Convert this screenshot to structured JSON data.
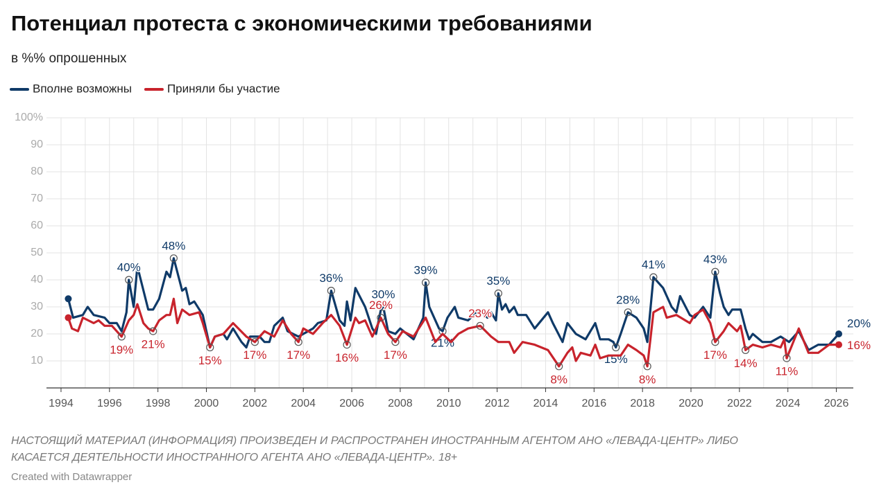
{
  "chart_data": {
    "type": "line",
    "title": "Потенциал протеста с экономическими требованиями",
    "subtitle": "в %% опрошенных",
    "footnote": [
      "НАСТОЯЩИЙ МАТЕРИАЛ (ИНФОРМАЦИЯ) ПРОИЗВЕДЕН И РАСПРОСТРАНЕН ИНОСТРАННЫМ АГЕНТОМ АНО «ЛЕВАДА-ЦЕНТР» ЛИБО",
      "КАСАЕТСЯ ДЕЯТЕЛЬНОСТИ ИНОСТРАННОГО АГЕНТА АНО «ЛЕВАДА-ЦЕНТР». 18+"
    ],
    "credit": "Created with Datawrapper",
    "xlim": [
      1993.4,
      2026.7
    ],
    "xticks": [
      1994,
      1996,
      1998,
      2000,
      2002,
      2004,
      2006,
      2008,
      2010,
      2012,
      2014,
      2016,
      2018,
      2020,
      2022,
      2024,
      2026
    ],
    "ylim": [
      0,
      100
    ],
    "yticks": [
      10,
      20,
      30,
      40,
      50,
      60,
      70,
      80,
      90,
      {
        "value": 100,
        "label": "100%"
      }
    ],
    "grid": true,
    "series": [
      {
        "name": "Вполне возможны",
        "color": "#0f3a68",
        "x": [
          1994.3,
          1994.5,
          1994.9,
          1995.1,
          1995.35,
          1995.8,
          1996.0,
          1996.3,
          1996.5,
          1996.7,
          1996.8,
          1997.0,
          1997.15,
          1997.6,
          1997.8,
          1998.05,
          1998.35,
          1998.5,
          1998.65,
          1999.0,
          1999.15,
          1999.3,
          1999.5,
          1999.85,
          2000.0,
          2000.15,
          2000.35,
          2000.7,
          2000.85,
          2001.1,
          2001.45,
          2001.65,
          2001.8,
          2002.2,
          2002.4,
          2002.6,
          2002.8,
          2003.15,
          2003.35,
          2003.8,
          2004.4,
          2004.6,
          2004.95,
          2005.15,
          2005.5,
          2005.7,
          2005.8,
          2005.95,
          2006.15,
          2006.55,
          2006.85,
          2007.0,
          2007.2,
          2007.3,
          2007.5,
          2007.8,
          2008.0,
          2008.55,
          2008.95,
          2009.05,
          2009.2,
          2009.6,
          2009.75,
          2009.95,
          2010.25,
          2010.4,
          2010.8,
          2011.15,
          2011.35,
          2011.6,
          2011.75,
          2011.95,
          2012.05,
          2012.2,
          2012.35,
          2012.5,
          2012.7,
          2012.85,
          2013.2,
          2013.55,
          2014.1,
          2014.3,
          2014.7,
          2014.9,
          2015.25,
          2015.65,
          2016.05,
          2016.25,
          2016.6,
          2016.8,
          2016.9,
          2017.1,
          2017.4,
          2017.75,
          2018.05,
          2018.2,
          2018.45,
          2018.85,
          2019.2,
          2019.4,
          2019.55,
          2019.95,
          2020.15,
          2020.5,
          2020.8,
          2021.0,
          2021.2,
          2021.35,
          2021.55,
          2021.7,
          2022.05,
          2022.25,
          2022.4,
          2022.55,
          2022.95,
          2023.3,
          2023.7,
          2024.05,
          2024.45,
          2024.85,
          2025.25,
          2025.7,
          2026.1
        ],
        "values": [
          33,
          26,
          27,
          30,
          27,
          26,
          24,
          24,
          21,
          28,
          40,
          30,
          45,
          29,
          29,
          33,
          43,
          41,
          48,
          36,
          37,
          31,
          32,
          27,
          21,
          15,
          19,
          20,
          18,
          22,
          17,
          15,
          19,
          19,
          17,
          17,
          23,
          26,
          21,
          19,
          22,
          24,
          25,
          36,
          25,
          23,
          32,
          25,
          37,
          30,
          22,
          20,
          29,
          30,
          21,
          20,
          22,
          18,
          26,
          39,
          30,
          22,
          21,
          26,
          30,
          26,
          25,
          28,
          28,
          26,
          28,
          25,
          35,
          29,
          31,
          28,
          30,
          27,
          27,
          22,
          28,
          24,
          17,
          24,
          20,
          18,
          24,
          18,
          18,
          17,
          15,
          20,
          28,
          26,
          22,
          17,
          41,
          37,
          30,
          28,
          34,
          27,
          26,
          30,
          26,
          43,
          35,
          30,
          27,
          29,
          29,
          22,
          18,
          20,
          17,
          17,
          19,
          17,
          21,
          14,
          16,
          16,
          20
        ],
        "value_labels": [
          null,
          null,
          null,
          null,
          null,
          null,
          null,
          null,
          null,
          null,
          "40%",
          null,
          null,
          null,
          null,
          null,
          null,
          null,
          "48%",
          null,
          null,
          null,
          null,
          null,
          null,
          null,
          null,
          null,
          null,
          null,
          null,
          null,
          null,
          null,
          null,
          null,
          null,
          null,
          null,
          null,
          null,
          null,
          null,
          "36%",
          null,
          null,
          null,
          null,
          null,
          null,
          null,
          null,
          null,
          "30%",
          null,
          null,
          null,
          null,
          null,
          "39%",
          null,
          null,
          "21%",
          null,
          null,
          null,
          null,
          null,
          null,
          null,
          null,
          null,
          "35%",
          null,
          null,
          null,
          null,
          null,
          null,
          null,
          null,
          null,
          null,
          null,
          null,
          null,
          null,
          null,
          null,
          null,
          "15%",
          null,
          "28%",
          null,
          null,
          null,
          "41%",
          null,
          null,
          null,
          null,
          null,
          null,
          null,
          null,
          "43%",
          null,
          null,
          null,
          null,
          null,
          null,
          null,
          null,
          null,
          null,
          null,
          null,
          null,
          null,
          null,
          null,
          "20%"
        ]
      },
      {
        "name": "Приняли бы участие",
        "color": "#c8232c",
        "x": [
          1994.3,
          1994.45,
          1994.7,
          1994.9,
          1995.35,
          1995.55,
          1995.8,
          1996.1,
          1996.5,
          1996.8,
          1997.0,
          1997.15,
          1997.4,
          1997.6,
          1997.8,
          1998.05,
          1998.35,
          1998.5,
          1998.65,
          1998.8,
          1999.0,
          1999.3,
          1999.7,
          1999.85,
          2000.15,
          2000.35,
          2000.7,
          2001.1,
          2001.65,
          2002.0,
          2002.4,
          2002.8,
          2003.15,
          2003.5,
          2003.8,
          2004.0,
          2004.4,
          2004.8,
          2005.15,
          2005.5,
          2005.8,
          2006.15,
          2006.3,
          2006.55,
          2006.85,
          2007.2,
          2007.5,
          2007.8,
          2008.1,
          2008.55,
          2009.05,
          2009.45,
          2009.75,
          2010.1,
          2010.4,
          2010.8,
          2011.3,
          2011.75,
          2012.05,
          2012.5,
          2012.7,
          2013.05,
          2013.55,
          2014.1,
          2014.55,
          2014.9,
          2015.1,
          2015.25,
          2015.45,
          2015.85,
          2016.05,
          2016.25,
          2016.6,
          2017.1,
          2017.4,
          2017.75,
          2018.05,
          2018.2,
          2018.45,
          2018.85,
          2019.0,
          2019.4,
          2019.95,
          2020.15,
          2020.5,
          2020.8,
          2021.0,
          2021.35,
          2021.55,
          2021.9,
          2022.05,
          2022.25,
          2022.55,
          2022.95,
          2023.3,
          2023.7,
          2023.85,
          2023.95,
          2024.45,
          2024.85,
          2025.25,
          2025.7,
          2026.1
        ],
        "values": [
          26,
          22,
          21,
          26,
          24,
          25,
          23,
          23,
          19,
          25,
          27,
          31,
          24,
          22,
          21,
          25,
          27,
          27,
          33,
          24,
          29,
          27,
          28,
          24,
          15,
          19,
          20,
          24,
          19,
          17,
          21,
          19,
          25,
          20,
          17,
          22,
          20,
          24,
          27,
          23,
          16,
          26,
          24,
          25,
          19,
          26,
          20,
          17,
          21,
          19,
          26,
          17,
          20,
          17,
          20,
          22,
          23,
          19,
          17,
          17,
          13,
          17,
          16,
          14,
          8,
          13,
          15,
          10,
          13,
          12,
          16,
          11,
          12,
          12,
          16,
          14,
          12,
          8,
          28,
          30,
          26,
          27,
          24,
          27,
          29,
          24,
          17,
          21,
          24,
          21,
          23,
          14,
          16,
          15,
          16,
          15,
          18,
          11,
          22,
          13,
          13,
          16,
          16
        ],
        "value_labels": [
          null,
          null,
          null,
          null,
          null,
          null,
          null,
          null,
          "19%",
          null,
          null,
          null,
          null,
          null,
          "21%",
          null,
          null,
          null,
          null,
          null,
          null,
          null,
          null,
          null,
          "15%",
          null,
          null,
          null,
          null,
          "17%",
          null,
          null,
          null,
          null,
          "17%",
          null,
          null,
          null,
          null,
          null,
          "16%",
          null,
          null,
          null,
          null,
          "26%",
          null,
          "17%",
          null,
          null,
          null,
          null,
          null,
          null,
          null,
          null,
          "23%",
          null,
          null,
          null,
          null,
          null,
          null,
          null,
          "8%",
          null,
          null,
          null,
          null,
          null,
          null,
          null,
          null,
          null,
          null,
          null,
          null,
          "8%",
          null,
          null,
          null,
          null,
          null,
          null,
          null,
          null,
          "17%",
          null,
          null,
          null,
          null,
          "14%",
          null,
          null,
          null,
          null,
          null,
          "11%",
          null,
          null,
          null,
          null,
          "16%"
        ]
      }
    ]
  }
}
